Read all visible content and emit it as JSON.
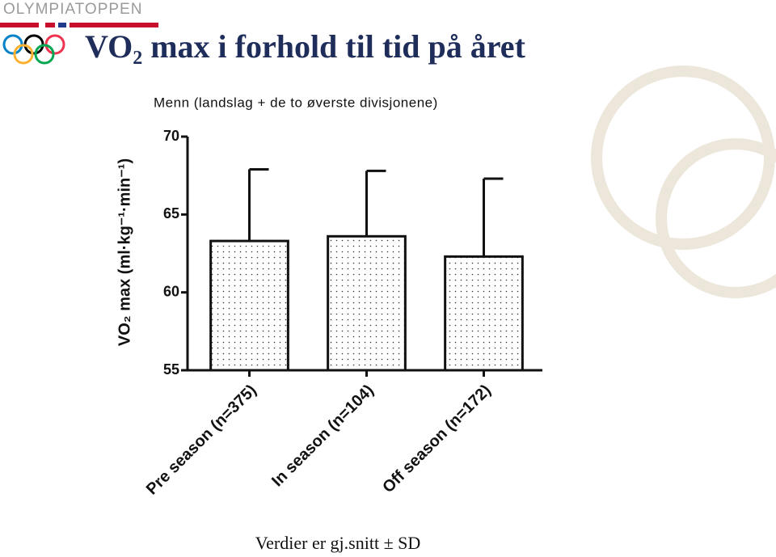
{
  "logo_text": "OLYMPIATOPPEN",
  "chart_data": {
    "type": "bar",
    "title": "VO₂ max i forhold til tid på året",
    "subtitle": "Menn (landslag + de to øverste divisjonene)",
    "y_label": "VO₂ max (ml·kg⁻¹·min⁻¹)",
    "footnote": "Verdier er gj.snitt ± SD",
    "categories": [
      "Pre season (n=375)",
      "In season (n=104)",
      "Off season (n=172)"
    ],
    "values": [
      63.3,
      63.6,
      62.3
    ],
    "errors": [
      4.6,
      4.2,
      5.0
    ],
    "color": "#ffffff",
    "ylim": [
      55,
      70
    ],
    "yticks": [
      55,
      60,
      65,
      70
    ],
    "grid": false
  }
}
